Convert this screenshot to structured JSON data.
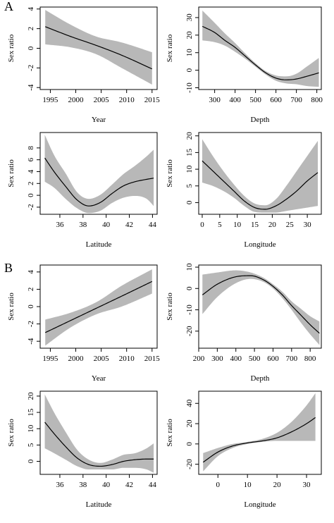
{
  "panel_labels": {
    "a": "A",
    "b": "B"
  },
  "colors": {
    "band": "#b8b8b8",
    "line": "#000000",
    "axis": "#000000"
  },
  "chart_data": [
    {
      "group": "A",
      "type": "line",
      "xlabel": "Year",
      "ylabel": "Sex ratio",
      "xlim": [
        1993,
        2016
      ],
      "ylim": [
        -4.2,
        4.2
      ],
      "xticks": [
        1995,
        2000,
        2005,
        2010,
        2015
      ],
      "yticks": [
        -4,
        -2,
        0,
        2,
        4
      ],
      "grid": false,
      "series": [
        {
          "x": [
            1994,
            1999,
            2004,
            2009,
            2015
          ],
          "y": [
            2.2,
            1.2,
            0.3,
            -0.7,
            -2.1
          ],
          "lower": [
            0.4,
            0.1,
            -0.6,
            -2.0,
            -3.7
          ],
          "upper": [
            3.9,
            2.4,
            1.2,
            0.6,
            -0.4
          ]
        }
      ]
    },
    {
      "group": "A",
      "type": "line",
      "xlabel": "Depth",
      "ylabel": "Sex ratio",
      "xlim": [
        222,
        822
      ],
      "ylim": [
        -11,
        36
      ],
      "xticks": [
        300,
        400,
        500,
        600,
        700,
        800
      ],
      "yticks": [
        -10,
        0,
        10,
        20,
        30
      ],
      "grid": false,
      "series": [
        {
          "x": [
            240,
            300,
            350,
            400,
            450,
            500,
            550,
            600,
            650,
            700,
            750,
            810
          ],
          "y": [
            25,
            21.5,
            17,
            13,
            8,
            3,
            -1.5,
            -4.5,
            -5.5,
            -5,
            -3.5,
            -1.5
          ],
          "lower": [
            17,
            16,
            14,
            10.5,
            6.5,
            2,
            -2.5,
            -6,
            -7.5,
            -8,
            -9,
            -9.5
          ],
          "upper": [
            34,
            27,
            21,
            15.5,
            9.5,
            4,
            -0.5,
            -3,
            -3.5,
            -2,
            2,
            7
          ]
        }
      ]
    },
    {
      "group": "A",
      "type": "line",
      "xlabel": "Latitude",
      "ylabel": "Sex ratio",
      "xlim": [
        34.3,
        44.4
      ],
      "ylim": [
        -3.2,
        10.6
      ],
      "xticks": [
        36,
        38,
        40,
        42,
        44
      ],
      "yticks": [
        -2,
        0,
        2,
        4,
        6,
        8
      ],
      "grid": false,
      "series": [
        {
          "x": [
            34.7,
            35.5,
            36.5,
            37.5,
            38.5,
            39.5,
            40.5,
            41.5,
            42.5,
            43.5,
            44.1
          ],
          "y": [
            6.3,
            4.0,
            1.5,
            -0.8,
            -1.8,
            -1.2,
            0.3,
            1.6,
            2.3,
            2.7,
            2.9
          ],
          "lower": [
            2.3,
            1.3,
            -0.6,
            -2.2,
            -3.0,
            -2.6,
            -1.3,
            -0.4,
            -0.1,
            -0.6,
            -1.8
          ],
          "upper": [
            10.2,
            6.8,
            3.7,
            0.5,
            -0.6,
            0.1,
            1.8,
            3.6,
            5.0,
            6.6,
            7.7
          ]
        }
      ]
    },
    {
      "group": "A",
      "type": "line",
      "xlabel": "Longitude",
      "ylabel": "Sex ratio",
      "xlim": [
        -1,
        34
      ],
      "ylim": [
        -3.5,
        21
      ],
      "xticks": [
        0,
        5,
        10,
        15,
        20,
        25,
        30
      ],
      "yticks": [
        0,
        5,
        10,
        15,
        20
      ],
      "grid": false,
      "series": [
        {
          "x": [
            0,
            3,
            6,
            9,
            12,
            15,
            18,
            21,
            24,
            27,
            30,
            33
          ],
          "y": [
            12.5,
            9.5,
            6.5,
            3.5,
            0.5,
            -1.5,
            -2,
            -1,
            1,
            3.5,
            6.5,
            9
          ],
          "lower": [
            6,
            5,
            3.5,
            1.5,
            -1,
            -2.8,
            -3,
            -3,
            -2.5,
            -2,
            -1.5,
            -1
          ],
          "upper": [
            19,
            14,
            9.5,
            5.5,
            2,
            -0.3,
            -0.8,
            1,
            5,
            9.5,
            14,
            18.5
          ]
        }
      ]
    },
    {
      "group": "B",
      "type": "line",
      "xlabel": "Year",
      "ylabel": "Sex ratio",
      "xlim": [
        1993,
        2016
      ],
      "ylim": [
        -4.8,
        4.8
      ],
      "xticks": [
        1995,
        2000,
        2005,
        2010,
        2015
      ],
      "yticks": [
        -4,
        -2,
        0,
        2,
        4
      ],
      "grid": false,
      "series": [
        {
          "x": [
            1994,
            1999,
            2004,
            2009,
            2015
          ],
          "y": [
            -3.0,
            -1.6,
            -0.2,
            1.2,
            2.9
          ],
          "lower": [
            -4.5,
            -2.4,
            -0.9,
            0.0,
            1.5
          ],
          "upper": [
            -1.5,
            -0.7,
            0.5,
            2.4,
            4.3
          ]
        }
      ]
    },
    {
      "group": "B",
      "type": "line",
      "xlabel": "Depth",
      "ylabel": "Sex ratio",
      "xlim": [
        200,
        860
      ],
      "ylim": [
        -28,
        11
      ],
      "xticks": [
        200,
        300,
        400,
        500,
        600,
        700,
        800
      ],
      "yticks": [
        -20,
        -10,
        0,
        10
      ],
      "grid": false,
      "series": [
        {
          "x": [
            220,
            300,
            400,
            480,
            550,
            600,
            650,
            700,
            750,
            800,
            850
          ],
          "y": [
            -3,
            2,
            5.5,
            6,
            4,
            1,
            -3,
            -8,
            -12.5,
            -17,
            -21
          ],
          "lower": [
            -12,
            -4,
            2.5,
            4.5,
            3,
            0,
            -4.5,
            -10,
            -16,
            -21.5,
            -26.5
          ],
          "upper": [
            6.5,
            7.5,
            8.5,
            7.5,
            5,
            2,
            -1.5,
            -6,
            -9.5,
            -13,
            -15.5
          ]
        }
      ]
    },
    {
      "group": "B",
      "type": "line",
      "xlabel": "Latitude",
      "ylabel": "Sex ratio",
      "xlim": [
        34.3,
        44.4
      ],
      "ylim": [
        -4,
        21.5
      ],
      "xticks": [
        36,
        38,
        40,
        42,
        44
      ],
      "yticks": [
        0,
        5,
        10,
        15,
        20
      ],
      "grid": false,
      "series": [
        {
          "x": [
            34.7,
            35.5,
            36.5,
            37.5,
            38.5,
            39.5,
            40.5,
            41.5,
            42.5,
            43.5,
            44.1
          ],
          "y": [
            12,
            8.5,
            4.5,
            1,
            -1,
            -1.5,
            -1,
            0,
            0.5,
            0.7,
            0.7
          ],
          "lower": [
            4,
            2.5,
            0.5,
            -1.5,
            -2.5,
            -2.5,
            -2.5,
            -2,
            -2,
            -2.5,
            -3.5
          ],
          "upper": [
            20.5,
            15,
            9,
            3.5,
            0.5,
            -0.5,
            0.5,
            2,
            2.5,
            4,
            5.5
          ]
        }
      ]
    },
    {
      "group": "B",
      "type": "line",
      "xlabel": "Longitude",
      "ylabel": "Sex ratio",
      "xlim": [
        -6.5,
        35
      ],
      "ylim": [
        -30,
        52
      ],
      "xticks": [
        0,
        10,
        20,
        30
      ],
      "yticks": [
        -20,
        0,
        20,
        40
      ],
      "grid": false,
      "series": [
        {
          "x": [
            -5,
            0,
            5,
            10,
            15,
            20,
            25,
            30,
            33
          ],
          "y": [
            -18,
            -8,
            -2,
            1,
            3,
            6,
            12,
            20,
            26
          ],
          "lower": [
            -27,
            -12,
            -4,
            0,
            2,
            3,
            3,
            3,
            3
          ],
          "upper": [
            -9,
            -4,
            0,
            2,
            5,
            11,
            22,
            38,
            50
          ]
        }
      ]
    }
  ]
}
